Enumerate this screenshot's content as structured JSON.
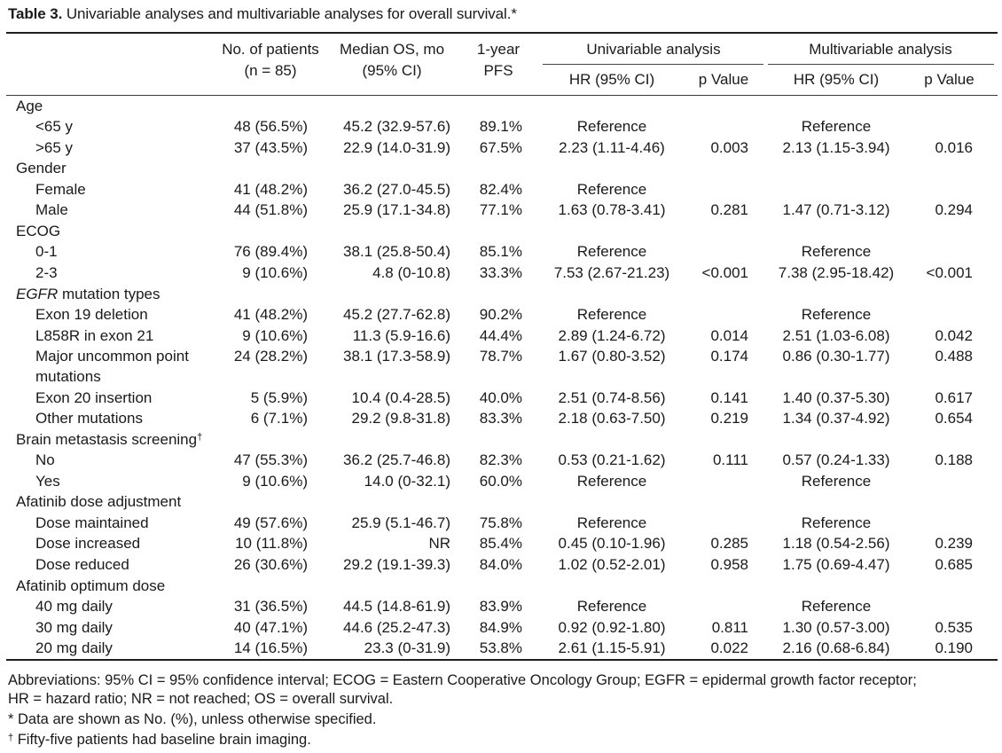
{
  "title": {
    "label": "Table 3.",
    "text": " Univariable analyses and multivariable analyses for overall survival.*"
  },
  "headers": {
    "patients": [
      "No. of patients",
      "(n = 85)"
    ],
    "median": [
      "Median OS, mo",
      "(95% CI)"
    ],
    "pfs": [
      "1-year",
      "PFS"
    ],
    "univariable": "Univariable analysis",
    "multivariable": "Multivariable analysis",
    "hr": "HR (95% CI)",
    "p": "p Value"
  },
  "rows": [
    {
      "label": "Age",
      "group": true
    },
    {
      "label": "<65 y",
      "patients": "48 (56.5%)",
      "median": "45.2 (32.9-57.6)",
      "pfs": "89.1%",
      "u_hr": "Reference",
      "u_p": "",
      "m_hr": "Reference",
      "m_p": ""
    },
    {
      "label": ">65 y",
      "patients": "37 (43.5%)",
      "median": "22.9 (14.0-31.9)",
      "pfs": "67.5%",
      "u_hr": "2.23 (1.11-4.46)",
      "u_p": "0.003",
      "m_hr": "2.13 (1.15-3.94)",
      "m_p": "0.016"
    },
    {
      "label": "Gender",
      "group": true
    },
    {
      "label": "Female",
      "patients": "41 (48.2%)",
      "median": "36.2 (27.0-45.5)",
      "pfs": "82.4%",
      "u_hr": "Reference",
      "u_p": "",
      "m_hr": "",
      "m_p": ""
    },
    {
      "label": "Male",
      "patients": "44 (51.8%)",
      "median": "25.9 (17.1-34.8)",
      "pfs": "77.1%",
      "u_hr": "1.63 (0.78-3.41)",
      "u_p": "0.281",
      "m_hr": "1.47 (0.71-3.12)",
      "m_p": "0.294"
    },
    {
      "label": "ECOG",
      "group": true
    },
    {
      "label": "0-1",
      "patients": "76 (89.4%)",
      "median": "38.1 (25.8-50.4)",
      "pfs": "85.1%",
      "u_hr": "Reference",
      "u_p": "",
      "m_hr": "Reference",
      "m_p": ""
    },
    {
      "label": "2-3",
      "patients": "9 (10.6%)",
      "median": "4.8 (0-10.8)",
      "pfs": "33.3%",
      "u_hr": "7.53 (2.67-21.23)",
      "u_p": "<0.001",
      "m_hr": "7.38 (2.95-18.42)",
      "m_p": "<0.001"
    },
    {
      "label_italic": "EGFR",
      "label": " mutation types",
      "group": true
    },
    {
      "label": "Exon 19 deletion",
      "patients": "41 (48.2%)",
      "median": "45.2 (27.7-62.8)",
      "pfs": "90.2%",
      "u_hr": "Reference",
      "u_p": "",
      "m_hr": "Reference",
      "m_p": ""
    },
    {
      "label": "L858R in exon 21",
      "patients": "9 (10.6%)",
      "median": "11.3 (5.9-16.6)",
      "pfs": "44.4%",
      "u_hr": "2.89 (1.24-6.72)",
      "u_p": "0.014",
      "m_hr": "2.51 (1.03-6.08)",
      "m_p": "0.042"
    },
    {
      "label": "Major uncommon point",
      "patients": "24 (28.2%)",
      "median": "38.1 (17.3-58.9)",
      "pfs": "78.7%",
      "u_hr": "1.67 (0.80-3.52)",
      "u_p": "0.174",
      "m_hr": "0.86 (0.30-1.77)",
      "m_p": "0.488"
    },
    {
      "label": "mutations",
      "continuation": true
    },
    {
      "label": "Exon 20 insertion",
      "patients": "5 (5.9%)",
      "median": "10.4 (0.4-28.5)",
      "pfs": "40.0%",
      "u_hr": "2.51 (0.74-8.56)",
      "u_p": "0.141",
      "m_hr": "1.40 (0.37-5.30)",
      "m_p": "0.617"
    },
    {
      "label": "Other mutations",
      "patients": "6 (7.1%)",
      "median": "29.2 (9.8-31.8)",
      "pfs": "83.3%",
      "u_hr": "2.18 (0.63-7.50)",
      "u_p": "0.219",
      "m_hr": "1.34 (0.37-4.92)",
      "m_p": "0.654"
    },
    {
      "label": "Brain metastasis screening",
      "sup": "†",
      "group": true
    },
    {
      "label": "No",
      "patients": "47 (55.3%)",
      "median": "36.2 (25.7-46.8)",
      "pfs": "82.3%",
      "u_hr": "0.53 (0.21-1.62)",
      "u_p": "0.111",
      "m_hr": "0.57 (0.24-1.33)",
      "m_p": "0.188"
    },
    {
      "label": "Yes",
      "patients": "9 (10.6%)",
      "median": "14.0 (0-32.1)",
      "pfs": "60.0%",
      "u_hr": "Reference",
      "u_p": "",
      "m_hr": "Reference",
      "m_p": ""
    },
    {
      "label": "Afatinib dose adjustment",
      "group": true
    },
    {
      "label": "Dose maintained",
      "patients": "49 (57.6%)",
      "median": "25.9 (5.1-46.7)",
      "pfs": "75.8%",
      "u_hr": "Reference",
      "u_p": "",
      "m_hr": "Reference",
      "m_p": ""
    },
    {
      "label": "Dose increased",
      "patients": "10 (11.8%)",
      "median": "NR",
      "pfs": "85.4%",
      "u_hr": "0.45 (0.10-1.96)",
      "u_p": "0.285",
      "m_hr": "1.18 (0.54-2.56)",
      "m_p": "0.239"
    },
    {
      "label": "Dose reduced",
      "patients": "26 (30.6%)",
      "median": "29.2 (19.1-39.3)",
      "pfs": "84.0%",
      "u_hr": "1.02 (0.52-2.01)",
      "u_p": "0.958",
      "m_hr": "1.75 (0.69-4.47)",
      "m_p": "0.685"
    },
    {
      "label": "Afatinib optimum dose",
      "group": true
    },
    {
      "label": "40 mg daily",
      "patients": "31 (36.5%)",
      "median": "44.5 (14.8-61.9)",
      "pfs": "83.9%",
      "u_hr": "Reference",
      "u_p": "",
      "m_hr": "Reference",
      "m_p": ""
    },
    {
      "label": "30 mg daily",
      "patients": "40 (47.1%)",
      "median": "44.6 (25.2-47.3)",
      "pfs": "84.9%",
      "u_hr": "0.92 (0.92-1.80)",
      "u_p": "0.811",
      "m_hr": "1.30 (0.57-3.00)",
      "m_p": "0.535"
    },
    {
      "label": "20 mg daily",
      "patients": "14 (16.5%)",
      "median": "23.3 (0-31.9)",
      "pfs": "53.8%",
      "u_hr": "2.61 (1.15-5.91)",
      "u_p": "0.022",
      "m_hr": "2.16 (0.68-6.84)",
      "m_p": "0.190"
    }
  ],
  "footnotes": {
    "abbrev1": "Abbreviations: 95% CI = 95% confidence interval; ECOG = Eastern Cooperative Oncology Group; EGFR = epidermal growth factor receptor;",
    "abbrev2": "HR = hazard ratio; NR = not reached; OS = overall survival.",
    "note1": "* Data are shown as No. (%), unless otherwise specified.",
    "note2_mark": "†",
    "note2": " Fifty-five patients had baseline brain imaging."
  }
}
